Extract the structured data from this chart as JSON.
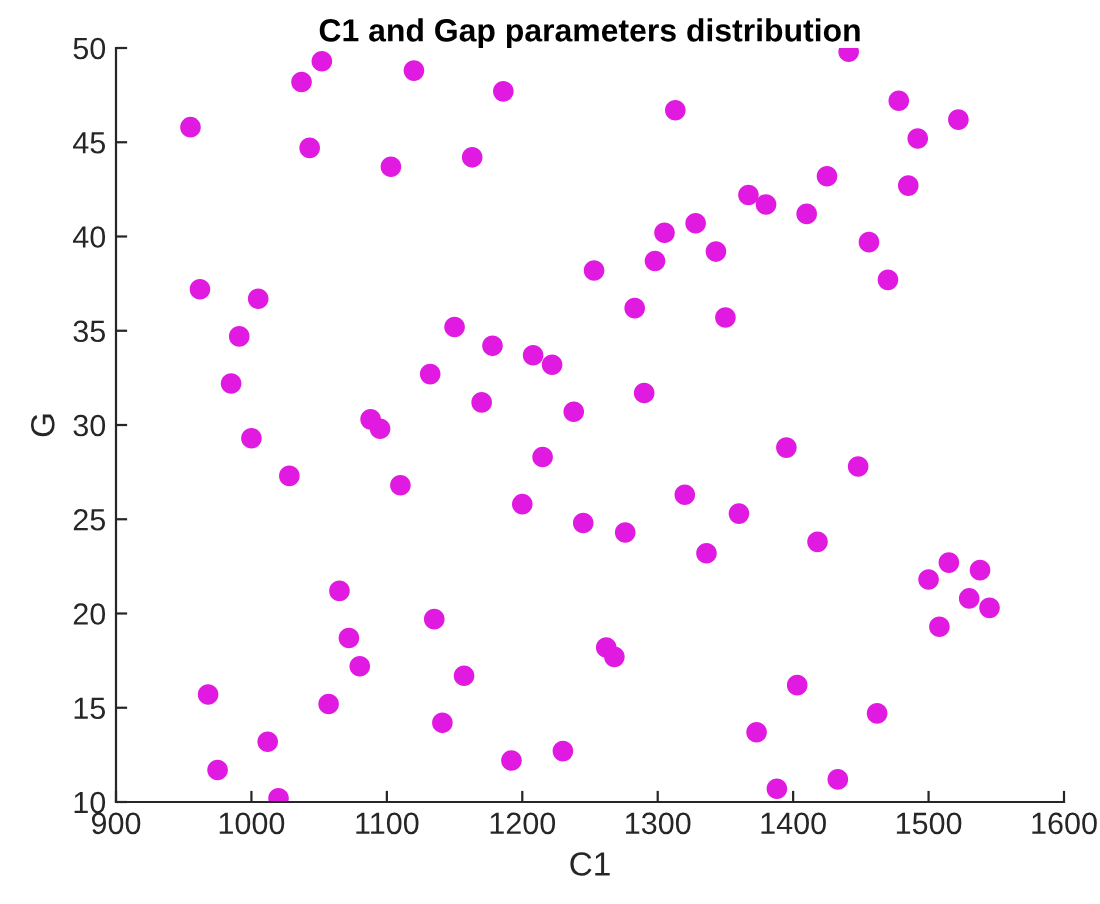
{
  "chart_data": {
    "type": "scatter",
    "title": "C1 and Gap parameters distribution",
    "xlabel": "C1",
    "ylabel": "G",
    "xlim": [
      900,
      1600
    ],
    "ylim": [
      10,
      50
    ],
    "xticks": [
      900,
      1000,
      1100,
      1200,
      1300,
      1400,
      1500,
      1600
    ],
    "yticks": [
      10,
      15,
      20,
      25,
      30,
      35,
      40,
      45,
      50
    ],
    "grid": false,
    "legend": false,
    "marker": "circle",
    "series": [
      {
        "color": "#e01ae0",
        "x": [
          955,
          962,
          968,
          975,
          985,
          991,
          1000,
          1005,
          1012,
          1020,
          1028,
          1037,
          1043,
          1052,
          1057,
          1065,
          1072,
          1080,
          1088,
          1095,
          1103,
          1110,
          1120,
          1132,
          1135,
          1141,
          1150,
          1157,
          1163,
          1170,
          1178,
          1186,
          1192,
          1200,
          1208,
          1215,
          1222,
          1230,
          1238,
          1245,
          1253,
          1262,
          1268,
          1276,
          1283,
          1290,
          1298,
          1305,
          1313,
          1320,
          1328,
          1336,
          1343,
          1350,
          1360,
          1367,
          1373,
          1380,
          1388,
          1395,
          1403,
          1410,
          1418,
          1425,
          1433,
          1441,
          1448,
          1456,
          1462,
          1470,
          1478,
          1485,
          1492,
          1500,
          1508,
          1515,
          1522,
          1530,
          1538,
          1545
        ],
        "values": [
          45.8,
          37.2,
          15.7,
          11.7,
          32.2,
          34.7,
          29.3,
          36.7,
          13.2,
          10.2,
          27.3,
          48.2,
          44.7,
          49.3,
          15.2,
          21.2,
          18.7,
          17.2,
          30.3,
          29.8,
          43.7,
          26.8,
          48.8,
          32.7,
          19.7,
          14.2,
          35.2,
          16.7,
          44.2,
          31.2,
          34.2,
          47.7,
          12.2,
          25.8,
          33.7,
          28.3,
          33.2,
          12.7,
          30.7,
          24.8,
          38.2,
          18.2,
          17.7,
          24.3,
          36.2,
          31.7,
          38.7,
          40.2,
          46.7,
          26.3,
          40.7,
          23.2,
          39.2,
          35.7,
          25.3,
          42.2,
          13.7,
          41.7,
          10.7,
          28.8,
          16.2,
          41.2,
          23.8,
          43.2,
          11.2,
          49.8,
          27.8,
          39.7,
          14.7,
          37.7,
          47.2,
          42.7,
          45.2,
          21.8,
          19.3,
          22.7,
          46.2,
          20.8,
          22.3,
          20.3
        ]
      }
    ]
  }
}
